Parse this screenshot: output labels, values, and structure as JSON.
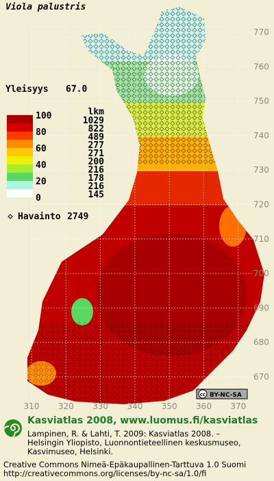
{
  "title": "Viola palustris",
  "frequency": {
    "label": "Yleisyys",
    "value": "67.0"
  },
  "legend": {
    "scale_labels": [
      100,
      80,
      60,
      40,
      20,
      0
    ],
    "colors": [
      "#a80000",
      "#d40000",
      "#ff3a00",
      "#ff8c00",
      "#ffc800",
      "#f0f000",
      "#a8ec2c",
      "#58d860",
      "#a8f8e0",
      "#ffffff"
    ],
    "count_header": "lkm",
    "counts": [
      1029,
      822,
      489,
      277,
      271,
      200,
      216,
      178,
      216,
      145
    ]
  },
  "observations": {
    "label": "Havainto",
    "value": 2749
  },
  "map": {
    "y_labels": [
      770,
      760,
      750,
      740,
      730,
      720,
      710,
      700,
      690,
      680,
      670
    ],
    "x_labels": [
      310,
      320,
      330,
      340,
      350,
      360,
      370
    ]
  },
  "license_badge": {
    "icon": "cc",
    "text": "BY-NC-SA"
  },
  "footer": {
    "heading": "Kasviatlas 2008, www.luomus.fi/kasviatlas",
    "citation": [
      "Lampinen, R. & Lahti, T. 2009: Kasviatlas 2008. –",
      "Helsingin Yliopisto, Luonnontieteellinen keskusmuseo,",
      "Kasvimuseo, Helsinki."
    ],
    "license": [
      "Creative Commons Nimeä-Epäkaupallinen-Tarttuva 1.0 Suomi",
      "http://creativecommons.org/licenses/by-nc-sa/1.0/fi"
    ]
  }
}
